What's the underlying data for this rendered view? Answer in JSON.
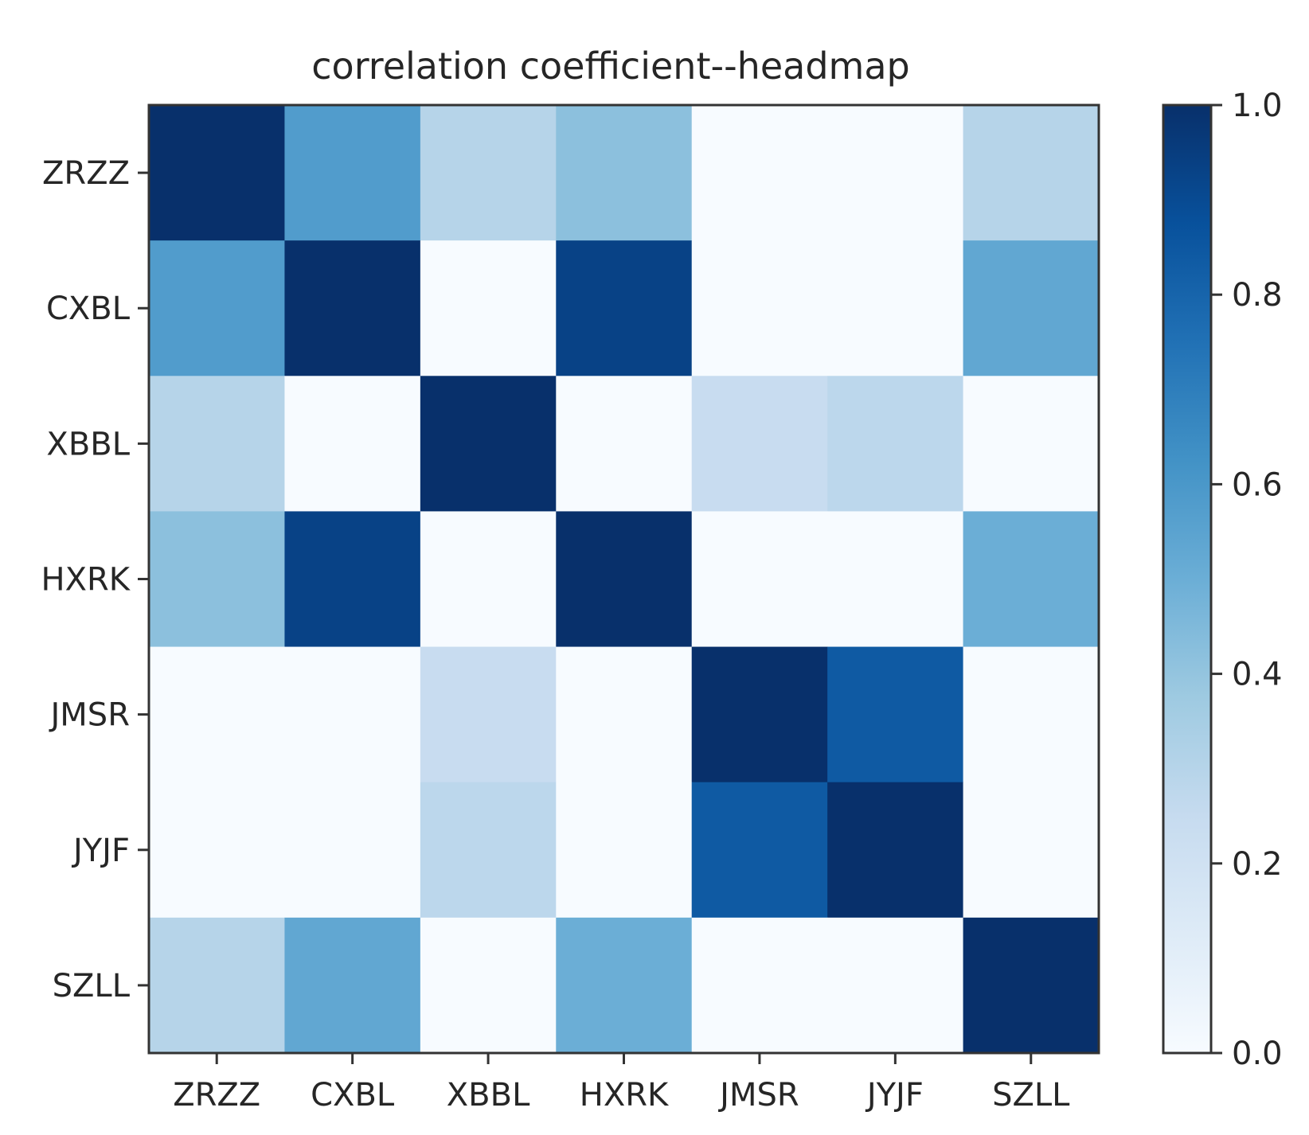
{
  "chart_data": {
    "type": "heatmap",
    "title": "correlation coefficient--headmap",
    "xlabel": "",
    "ylabel": "",
    "x_categories": [
      "ZRZZ",
      "CXBL",
      "XBBL",
      "HXRK",
      "JMSR",
      "JYJF",
      "SZLL"
    ],
    "y_categories": [
      "ZRZZ",
      "CXBL",
      "XBBL",
      "HXRK",
      "JMSR",
      "JYJF",
      "SZLL"
    ],
    "values": [
      [
        1.0,
        0.58,
        0.3,
        0.42,
        0.0,
        0.0,
        0.3
      ],
      [
        0.58,
        1.0,
        0.0,
        0.93,
        0.0,
        0.0,
        0.53
      ],
      [
        0.3,
        0.0,
        1.0,
        0.0,
        0.24,
        0.28,
        0.0
      ],
      [
        0.42,
        0.93,
        0.0,
        1.0,
        0.0,
        0.0,
        0.5
      ],
      [
        0.0,
        0.0,
        0.24,
        0.0,
        1.0,
        0.84,
        0.0
      ],
      [
        0.0,
        0.0,
        0.28,
        0.0,
        0.84,
        1.0,
        0.0
      ],
      [
        0.3,
        0.53,
        0.0,
        0.5,
        0.0,
        0.0,
        1.0
      ]
    ],
    "colormap": "Blues",
    "colorbar": {
      "range": [
        0.0,
        1.0
      ],
      "ticks": [
        "0.0",
        "0.2",
        "0.4",
        "0.6",
        "0.8",
        "1.0"
      ]
    },
    "grid": false
  }
}
